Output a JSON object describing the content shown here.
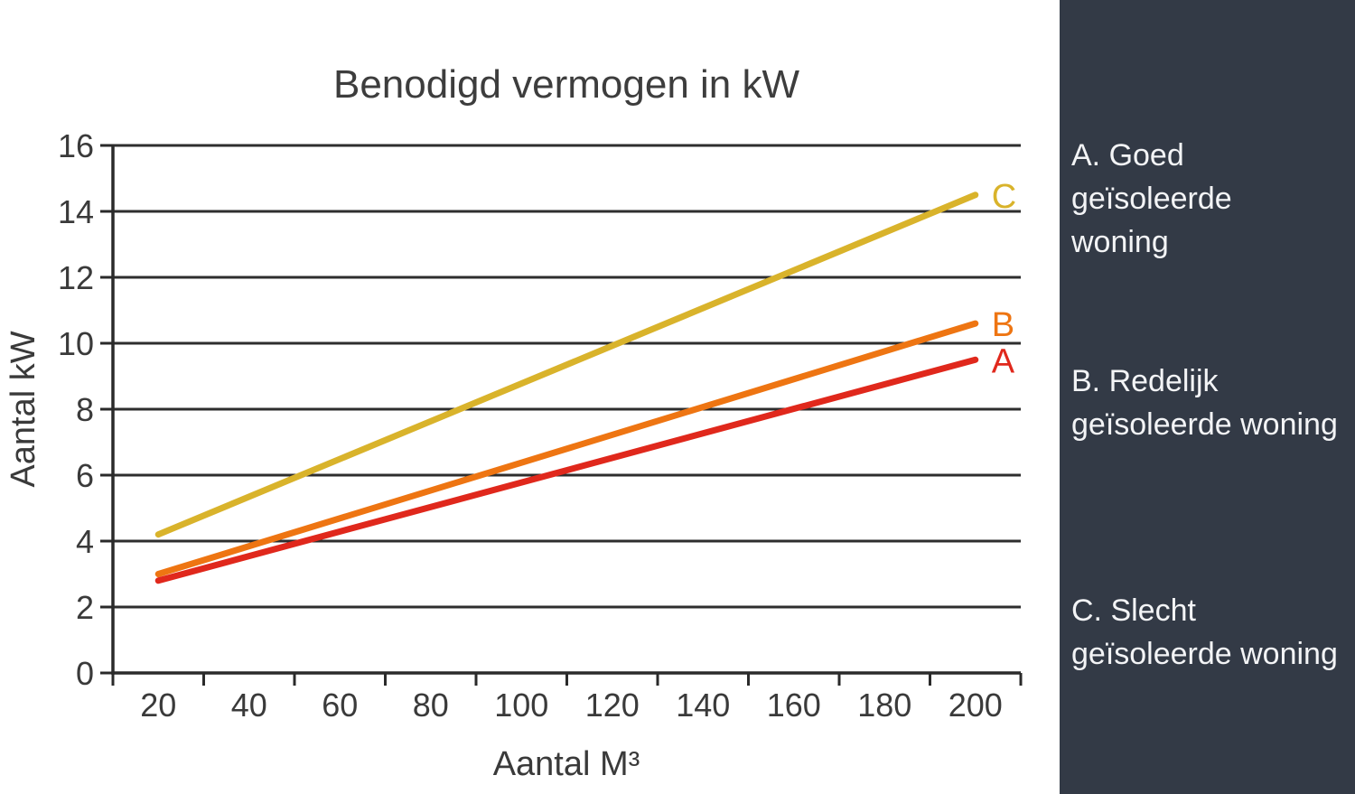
{
  "chart_data": {
    "type": "line",
    "title": "Benodigd vermogen in kW",
    "xlabel": "Aantal M³",
    "ylabel": "Aantal kW",
    "x_ticks": [
      20,
      40,
      60,
      80,
      100,
      120,
      140,
      160,
      180,
      200
    ],
    "y_ticks": [
      0,
      2,
      4,
      6,
      8,
      10,
      12,
      14,
      16
    ],
    "xlim": [
      10,
      210
    ],
    "ylim": [
      0,
      16
    ],
    "grid": "horizontal",
    "legend_position": "right-sidebar",
    "series": [
      {
        "name": "C",
        "label": "C",
        "description": "C. Slecht geïsoleerde woning",
        "color": "#d9b32b",
        "points": [
          [
            20,
            4.2
          ],
          [
            200,
            14.5
          ]
        ]
      },
      {
        "name": "B",
        "label": "B",
        "description": "B. Redelijk geïsoleerde woning",
        "color": "#ee7512",
        "points": [
          [
            20,
            3.0
          ],
          [
            200,
            10.6
          ]
        ]
      },
      {
        "name": "A",
        "label": "A",
        "description": "A. Goed geïsoleerde woning",
        "color": "#e0281c",
        "points": [
          [
            20,
            2.8
          ],
          [
            200,
            9.5
          ]
        ]
      }
    ]
  },
  "colors": {
    "sidebar_bg": "#333a46",
    "grid": "#2e2e2e",
    "axis": "#2a2a2a",
    "tick_text": "#3a3a3a",
    "legend_text": "#f3f4f6"
  },
  "sidebar": {
    "items": [
      {
        "lines": [
          "A. Goed geïsoleerde",
          "woning"
        ]
      },
      {
        "lines": [
          "B. Redelijk",
          "geïsoleerde woning"
        ]
      },
      {
        "lines": [
          "C. Slecht",
          "geïsoleerde woning"
        ]
      }
    ]
  }
}
